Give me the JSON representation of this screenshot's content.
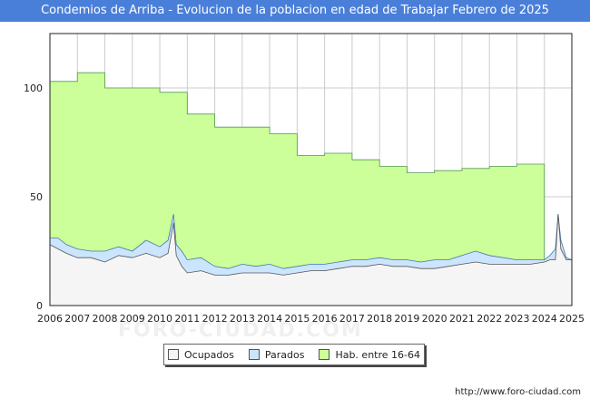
{
  "chart_data": {
    "type": "area",
    "title": "Condemios de Arriba - Evolucion de la poblacion en edad de Trabajar Febrero de 2025",
    "xlabel": "",
    "ylabel": "",
    "xlim": [
      2006,
      2025
    ],
    "ylim": [
      0,
      125
    ],
    "yticks": [
      0,
      50,
      100
    ],
    "xticks": [
      2006,
      2007,
      2008,
      2009,
      2010,
      2011,
      2012,
      2013,
      2014,
      2015,
      2016,
      2017,
      2018,
      2019,
      2020,
      2021,
      2022,
      2023,
      2024,
      2025
    ],
    "grid": true,
    "legend_position": "bottom-center",
    "series": [
      {
        "name": "Hab. entre 16-64",
        "color": "#ccff99",
        "step_values": [
          {
            "year": 2006,
            "value": 103
          },
          {
            "year": 2007,
            "value": 107
          },
          {
            "year": 2008,
            "value": 100
          },
          {
            "year": 2009,
            "value": 100
          },
          {
            "year": 2010,
            "value": 98
          },
          {
            "year": 2011,
            "value": 88
          },
          {
            "year": 2012,
            "value": 82
          },
          {
            "year": 2013,
            "value": 82
          },
          {
            "year": 2014,
            "value": 79
          },
          {
            "year": 2015,
            "value": 69
          },
          {
            "year": 2016,
            "value": 70
          },
          {
            "year": 2017,
            "value": 67
          },
          {
            "year": 2018,
            "value": 64
          },
          {
            "year": 2019,
            "value": 61
          },
          {
            "year": 2020,
            "value": 62
          },
          {
            "year": 2021,
            "value": 63
          },
          {
            "year": 2022,
            "value": 64
          },
          {
            "year": 2023,
            "value": 65
          }
        ],
        "end_year": 2024
      },
      {
        "name": "Parados",
        "color": "#cce5ff",
        "x": [
          2006,
          2006.3,
          2006.6,
          2007,
          2007.5,
          2008,
          2008.5,
          2009,
          2009.5,
          2010,
          2010.3,
          2010.5,
          2010.6,
          2010.8,
          2011,
          2011.5,
          2012,
          2012.5,
          2013,
          2013.5,
          2014,
          2014.5,
          2015,
          2015.5,
          2016,
          2016.5,
          2017,
          2017.5,
          2018,
          2018.5,
          2019,
          2019.5,
          2020,
          2020.5,
          2021,
          2021.5,
          2022,
          2022.5,
          2023,
          2023.5,
          2024,
          2024.2,
          2024.4,
          2024.5,
          2024.6,
          2024.8,
          2025
        ],
        "values": [
          31,
          31,
          28,
          26,
          25,
          25,
          27,
          25,
          30,
          27,
          30,
          42,
          28,
          25,
          21,
          22,
          18,
          17,
          19,
          18,
          19,
          17,
          18,
          19,
          19,
          20,
          21,
          21,
          22,
          21,
          21,
          20,
          21,
          21,
          23,
          25,
          23,
          22,
          21,
          21,
          21,
          23,
          26,
          42,
          30,
          22,
          21
        ]
      },
      {
        "name": "Ocupados",
        "color": "#f5f5f5",
        "x": [
          2006,
          2006.3,
          2006.6,
          2007,
          2007.5,
          2008,
          2008.5,
          2009,
          2009.5,
          2010,
          2010.3,
          2010.5,
          2010.6,
          2010.8,
          2011,
          2011.5,
          2012,
          2012.5,
          2013,
          2013.5,
          2014,
          2014.5,
          2015,
          2015.5,
          2016,
          2016.5,
          2017,
          2017.5,
          2018,
          2018.5,
          2019,
          2019.5,
          2020,
          2020.5,
          2021,
          2021.5,
          2022,
          2022.5,
          2023,
          2023.5,
          2024,
          2024.2,
          2024.4,
          2024.5,
          2024.6,
          2024.8,
          2025
        ],
        "values": [
          28,
          26,
          24,
          22,
          22,
          20,
          23,
          22,
          24,
          22,
          24,
          38,
          23,
          18,
          15,
          16,
          14,
          14,
          15,
          15,
          15,
          14,
          15,
          16,
          16,
          17,
          18,
          18,
          19,
          18,
          18,
          17,
          17,
          18,
          19,
          20,
          19,
          19,
          19,
          19,
          20,
          21,
          21,
          42,
          26,
          21,
          21
        ]
      }
    ]
  },
  "legend": {
    "items": [
      {
        "label": "Ocupados",
        "color": "#f5f5f5"
      },
      {
        "label": "Parados",
        "color": "#cce5ff"
      },
      {
        "label": "Hab. entre 16-64",
        "color": "#ccff99"
      }
    ]
  },
  "footer": {
    "url": "http://www.foro-ciudad.com"
  },
  "watermark": {
    "text": "FORO-CIUDAD.COM"
  }
}
